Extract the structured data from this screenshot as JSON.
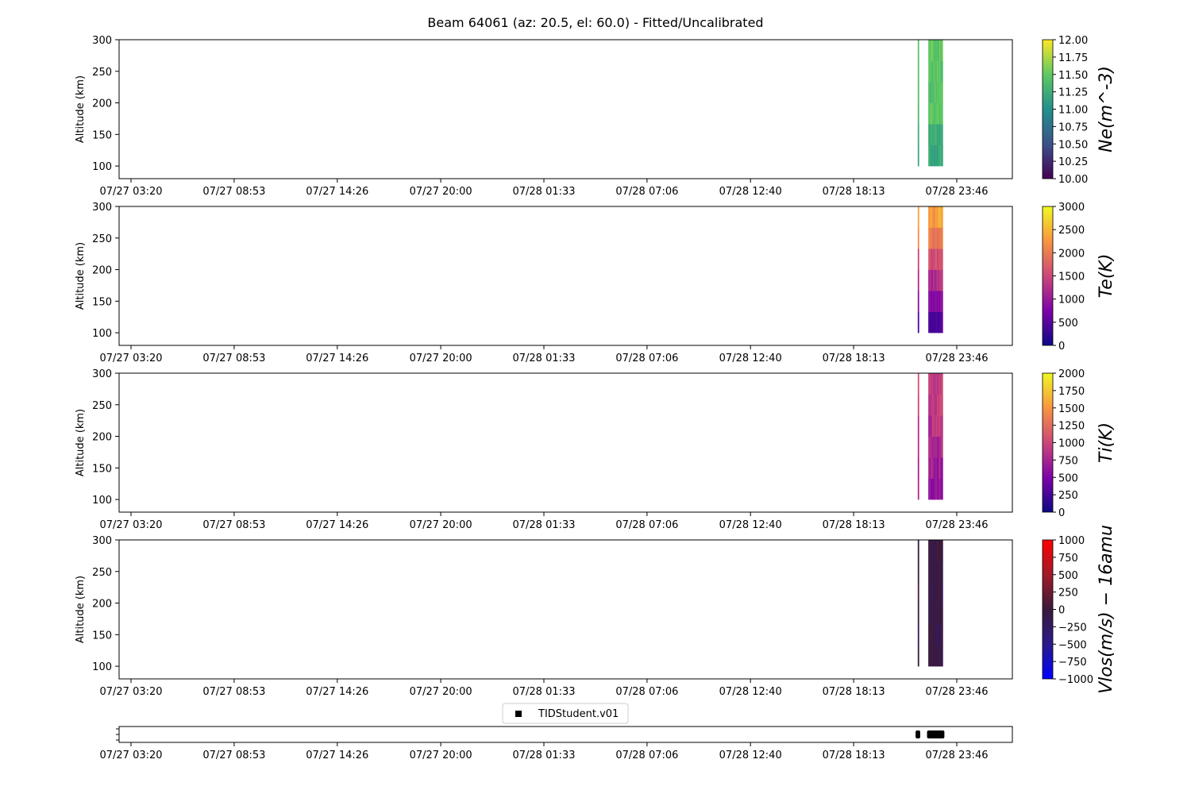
{
  "chart_data": [
    {
      "type": "heatmap",
      "panel": "ne",
      "title": "Beam 64061 (az: 20.5, el: 60.0) - Fitted/Uncalibrated",
      "ylabel": "Altitude (km)",
      "ylim": [
        80,
        300
      ],
      "yticks": [
        100,
        150,
        200,
        250,
        300
      ],
      "xticks": [
        "07/27 03:20",
        "07/27 08:53",
        "07/27 14:26",
        "07/27 20:00",
        "07/28 01:33",
        "07/28 07:06",
        "07/28 12:40",
        "07/28 18:13",
        "07/28 23:46"
      ],
      "colorbar": {
        "label": "Ne(m^-3)",
        "vmin": 10.0,
        "vmax": 12.0,
        "colormap": "viridis",
        "ticks": [
          "10.00",
          "10.25",
          "10.50",
          "10.75",
          "11.00",
          "11.25",
          "11.50",
          "11.75",
          "12.00"
        ]
      },
      "data_extent": {
        "time_start": "07/28 21:38",
        "time_end": "07/28 23:01",
        "alt_min": 100,
        "alt_max": 300
      }
    },
    {
      "type": "heatmap",
      "panel": "te",
      "ylabel": "Altitude (km)",
      "ylim": [
        80,
        300
      ],
      "yticks": [
        100,
        150,
        200,
        250,
        300
      ],
      "xticks": [
        "07/27 03:20",
        "07/27 08:53",
        "07/27 14:26",
        "07/27 20:00",
        "07/28 01:33",
        "07/28 07:06",
        "07/28 12:40",
        "07/28 18:13",
        "07/28 23:46"
      ],
      "colorbar": {
        "label": "Te(K)",
        "vmin": 0,
        "vmax": 3000,
        "colormap": "plasma",
        "ticks": [
          "0",
          "500",
          "1000",
          "1500",
          "2000",
          "2500",
          "3000"
        ]
      },
      "data_extent": {
        "time_start": "07/28 21:38",
        "time_end": "07/28 23:01",
        "alt_min": 100,
        "alt_max": 300
      }
    },
    {
      "type": "heatmap",
      "panel": "ti",
      "ylabel": "Altitude (km)",
      "ylim": [
        80,
        300
      ],
      "yticks": [
        100,
        150,
        200,
        250,
        300
      ],
      "xticks": [
        "07/27 03:20",
        "07/27 08:53",
        "07/27 14:26",
        "07/27 20:00",
        "07/28 01:33",
        "07/28 07:06",
        "07/28 12:40",
        "07/28 18:13",
        "07/28 23:46"
      ],
      "colorbar": {
        "label": "Ti(K)",
        "vmin": 0,
        "vmax": 2000,
        "colormap": "plasma",
        "ticks": [
          "0",
          "250",
          "500",
          "750",
          "1000",
          "1250",
          "1500",
          "1750",
          "2000"
        ]
      },
      "data_extent": {
        "time_start": "07/28 21:38",
        "time_end": "07/28 23:01",
        "alt_min": 100,
        "alt_max": 300
      }
    },
    {
      "type": "heatmap",
      "panel": "vlos",
      "ylabel": "Altitude (km)",
      "ylim": [
        80,
        300
      ],
      "yticks": [
        100,
        150,
        200,
        250,
        300
      ],
      "xticks": [
        "07/27 03:20",
        "07/27 08:53",
        "07/27 14:26",
        "07/27 20:00",
        "07/28 01:33",
        "07/28 07:06",
        "07/28 12:40",
        "07/28 18:13",
        "07/28 23:46"
      ],
      "colorbar": {
        "label": "Vlos(m/s) − 16amu",
        "vmin": -1000,
        "vmax": 1000,
        "colormap": "bwr-dark",
        "ticks": [
          "−1000",
          "−750",
          "−500",
          "−250",
          "0",
          "250",
          "500",
          "750",
          "1000"
        ]
      },
      "data_extent": {
        "time_start": "07/28 21:38",
        "time_end": "07/28 23:01",
        "alt_min": 100,
        "alt_max": 300
      }
    },
    {
      "type": "scatter",
      "panel": "availability",
      "legend": [
        "TIDStudent.v01"
      ],
      "legend_placement": "top-center",
      "xticks": [
        "07/27 03:20",
        "07/27 08:53",
        "07/27 14:26",
        "07/27 20:00",
        "07/28 01:33",
        "07/28 07:06",
        "07/28 12:40",
        "07/28 18:13",
        "07/28 23:46"
      ],
      "series": [
        {
          "name": "TIDStudent.v01",
          "segments": [
            [
              "07/28 21:33",
              "07/28 21:48"
            ],
            [
              "07/28 22:10",
              "07/28 23:06"
            ]
          ]
        }
      ]
    }
  ]
}
